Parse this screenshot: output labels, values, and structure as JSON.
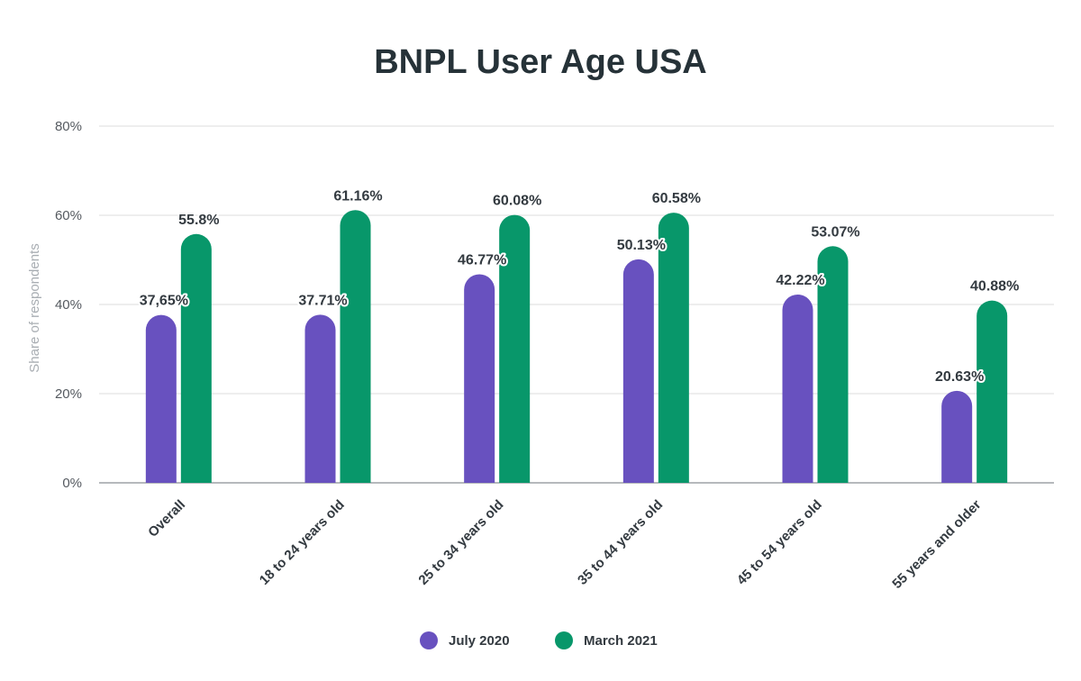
{
  "chart_data": {
    "type": "bar",
    "title": "BNPL User Age USA",
    "xlabel": "",
    "ylabel": "Share of respondents",
    "ylim": [
      0,
      80
    ],
    "yticks": [
      "0%",
      "20%",
      "40%",
      "60%",
      "80%"
    ],
    "categories": [
      "Overall",
      "18 to 24 years old",
      "25 to 34 years old",
      "35 to 44 years old",
      "45 to 54 years old",
      "55 years and older"
    ],
    "series": [
      {
        "name": "July 2020",
        "color": "#6851bf",
        "values": [
          37.65,
          37.71,
          46.77,
          50.13,
          42.22,
          20.63
        ],
        "labels": [
          "37,65%",
          "37.71%",
          "46.77%",
          "50.13%",
          "42.22%",
          "20.63%"
        ]
      },
      {
        "name": "March 2021",
        "color": "#08976a",
        "values": [
          55.8,
          61.16,
          60.08,
          60.58,
          53.07,
          40.88
        ],
        "labels": [
          "55.8%",
          "61.16%",
          "60.08%",
          "60.58%",
          "53.07%",
          "40.88%"
        ]
      }
    ],
    "grid": true,
    "legend_position": "bottom"
  }
}
